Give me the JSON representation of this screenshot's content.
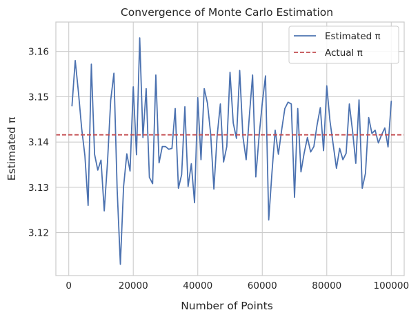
{
  "chart_data": {
    "type": "line",
    "title": "Convergence of Monte Carlo Estimation",
    "xlabel": "Number of Points",
    "ylabel": "Estimated π",
    "xlim": [
      -4000,
      104000
    ],
    "ylim": [
      3.1105,
      3.1665
    ],
    "xticks": [
      0,
      20000,
      40000,
      60000,
      80000,
      100000
    ],
    "yticks": [
      3.12,
      3.13,
      3.14,
      3.15,
      3.16
    ],
    "xtick_labels": [
      "0",
      "20000",
      "40000",
      "60000",
      "80000",
      "100000"
    ],
    "ytick_labels": [
      "3.12",
      "3.13",
      "3.14",
      "3.15",
      "3.16"
    ],
    "grid": true,
    "legend_position": "top-right",
    "series": [
      {
        "name": "Estimated π",
        "color": "#4c72b0",
        "style": "solid",
        "x": [
          1000,
          2000,
          3000,
          4000,
          5000,
          6000,
          7000,
          8000,
          9000,
          10000,
          11000,
          12000,
          13000,
          14000,
          15000,
          16000,
          17000,
          18000,
          19000,
          20000,
          21000,
          22000,
          23000,
          24000,
          25000,
          26000,
          27000,
          28000,
          29000,
          30000,
          31000,
          32000,
          33000,
          34000,
          35000,
          36000,
          37000,
          38000,
          39000,
          40000,
          41000,
          42000,
          43000,
          44000,
          45000,
          46000,
          47000,
          48000,
          49000,
          50000,
          51000,
          52000,
          53000,
          54000,
          55000,
          56000,
          57000,
          58000,
          59000,
          60000,
          61000,
          62000,
          63000,
          64000,
          65000,
          66000,
          67000,
          68000,
          69000,
          70000,
          71000,
          72000,
          73000,
          74000,
          75000,
          76000,
          77000,
          78000,
          79000,
          80000,
          81000,
          82000,
          83000,
          84000,
          85000,
          86000,
          87000,
          88000,
          89000,
          90000,
          91000,
          92000,
          93000,
          94000,
          95000,
          96000,
          97000,
          98000,
          99000,
          100000
        ],
        "y": [
          3.148,
          3.158,
          3.151,
          3.143,
          3.137,
          3.126,
          3.1572,
          3.1373,
          3.1338,
          3.136,
          3.1248,
          3.1354,
          3.1492,
          3.1552,
          3.1296,
          3.113,
          3.1302,
          3.1374,
          3.1336,
          3.1522,
          3.1372,
          3.163,
          3.141,
          3.1518,
          3.1322,
          3.1308,
          3.1548,
          3.1354,
          3.139,
          3.139,
          3.1384,
          3.1386,
          3.1474,
          3.1298,
          3.1328,
          3.1478,
          3.1302,
          3.1352,
          3.1266,
          3.1498,
          3.1361,
          3.1518,
          3.1486,
          3.1418,
          3.1296,
          3.1413,
          3.1484,
          3.1356,
          3.139,
          3.1554,
          3.1442,
          3.1408,
          3.1558,
          3.1412,
          3.1361,
          3.1458,
          3.1548,
          3.1323,
          3.1412,
          3.1486,
          3.1546,
          3.1228,
          3.1332,
          3.1426,
          3.1373,
          3.1426,
          3.1474,
          3.1488,
          3.1484,
          3.1278,
          3.1474,
          3.1334,
          3.1376,
          3.141,
          3.1378,
          3.139,
          3.1438,
          3.1476,
          3.1381,
          3.1524,
          3.1446,
          3.1394,
          3.1342,
          3.1386,
          3.1361,
          3.1375,
          3.1484,
          3.1424,
          3.1353,
          3.1493,
          3.1298,
          3.1331,
          3.1454,
          3.1419,
          3.1426,
          3.1398,
          3.1416,
          3.1431,
          3.1389,
          3.149
        ]
      },
      {
        "name": "Actual π",
        "color": "#c44e52",
        "style": "dashed",
        "hline": 3.14159
      }
    ]
  }
}
